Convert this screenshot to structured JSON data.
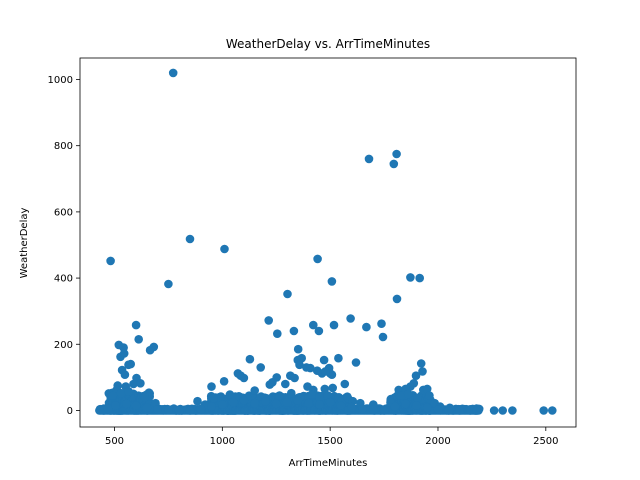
{
  "chart_data": {
    "type": "scatter",
    "title": "WeatherDelay vs. ArrTimeMinutes",
    "xlabel": "ArrTimeMinutes",
    "ylabel": "WeatherDelay",
    "xlim": [
      340,
      2640
    ],
    "ylim": [
      -50,
      1065
    ],
    "xticks": [
      500,
      1000,
      1500,
      2000,
      2500
    ],
    "yticks": [
      0,
      200,
      400,
      600,
      800,
      1000
    ],
    "grid": false,
    "legend": "none",
    "marker_color": "#1f77b4",
    "points": [
      [
        772,
        1020
      ],
      [
        1808,
        775
      ],
      [
        1680,
        760
      ],
      [
        1795,
        745
      ],
      [
        850,
        518
      ],
      [
        1010,
        488
      ],
      [
        482,
        452
      ],
      [
        1442,
        458
      ],
      [
        1872,
        402
      ],
      [
        1915,
        400
      ],
      [
        750,
        382
      ],
      [
        1508,
        390
      ],
      [
        1302,
        352
      ],
      [
        1810,
        337
      ],
      [
        1215,
        272
      ],
      [
        1595,
        278
      ],
      [
        1738,
        262
      ],
      [
        1668,
        252
      ],
      [
        1422,
        258
      ],
      [
        1518,
        258
      ],
      [
        1448,
        240
      ],
      [
        1332,
        240
      ],
      [
        1745,
        222
      ],
      [
        1255,
        232
      ],
      [
        600,
        258
      ],
      [
        612,
        215
      ],
      [
        520,
        198
      ],
      [
        542,
        190
      ],
      [
        682,
        192
      ],
      [
        665,
        182
      ],
      [
        528,
        162
      ],
      [
        545,
        172
      ],
      [
        1352,
        185
      ],
      [
        1472,
        152
      ],
      [
        1538,
        158
      ],
      [
        1620,
        145
      ],
      [
        1350,
        152
      ],
      [
        1368,
        158
      ],
      [
        1128,
        155
      ],
      [
        1922,
        142
      ],
      [
        1390,
        130
      ],
      [
        1178,
        130
      ],
      [
        1495,
        128
      ],
      [
        1462,
        112
      ],
      [
        1500,
        112
      ],
      [
        1508,
        108
      ],
      [
        1928,
        118
      ],
      [
        1898,
        105
      ],
      [
        1358,
        138
      ],
      [
        1252,
        100
      ],
      [
        1072,
        112
      ],
      [
        1085,
        105
      ],
      [
        1100,
        98
      ],
      [
        535,
        122
      ],
      [
        548,
        108
      ],
      [
        575,
        140
      ],
      [
        565,
        138
      ],
      [
        602,
        98
      ],
      [
        1315,
        105
      ],
      [
        1335,
        98
      ],
      [
        1408,
        128
      ],
      [
        1440,
        120
      ],
      [
        1478,
        118
      ],
      [
        1568,
        80
      ],
      [
        1872,
        72
      ],
      [
        1932,
        62
      ],
      [
        1818,
        62
      ],
      [
        515,
        75
      ],
      [
        510,
        62
      ],
      [
        552,
        72
      ],
      [
        588,
        80
      ],
      [
        620,
        82
      ],
      [
        950,
        72
      ],
      [
        1008,
        88
      ],
      [
        1150,
        60
      ],
      [
        1220,
        78
      ],
      [
        1232,
        85
      ],
      [
        1292,
        80
      ],
      [
        1395,
        72
      ],
      [
        1422,
        62
      ],
      [
        1475,
        65
      ],
      [
        1512,
        68
      ],
      [
        1850,
        65
      ],
      [
        1888,
        82
      ],
      [
        1950,
        65
      ],
      [
        492,
        45
      ],
      [
        530,
        52
      ],
      [
        565,
        58
      ],
      [
        640,
        40
      ],
      [
        690,
        22
      ],
      [
        885,
        28
      ],
      [
        920,
        18
      ],
      [
        960,
        38
      ],
      [
        1035,
        48
      ],
      [
        1060,
        42
      ],
      [
        1118,
        35
      ],
      [
        1180,
        42
      ],
      [
        1265,
        45
      ],
      [
        1320,
        52
      ],
      [
        1360,
        40
      ],
      [
        1415,
        48
      ],
      [
        1450,
        40
      ],
      [
        1490,
        45
      ],
      [
        1555,
        32
      ],
      [
        1582,
        38
      ],
      [
        1605,
        28
      ],
      [
        1640,
        22
      ],
      [
        1700,
        18
      ],
      [
        1780,
        25
      ],
      [
        1830,
        45
      ],
      [
        1862,
        50
      ],
      [
        1905,
        38
      ],
      [
        1960,
        45
      ],
      [
        1985,
        22
      ],
      [
        2010,
        12
      ],
      [
        2055,
        8
      ],
      [
        432,
        2
      ],
      [
        450,
        0
      ],
      [
        470,
        5
      ],
      [
        505,
        15
      ],
      [
        555,
        20
      ],
      [
        600,
        15
      ],
      [
        650,
        8
      ],
      [
        700,
        3
      ],
      [
        750,
        2
      ],
      [
        800,
        0
      ],
      [
        850,
        0
      ],
      [
        900,
        5
      ],
      [
        950,
        12
      ],
      [
        1000,
        18
      ],
      [
        1050,
        25
      ],
      [
        1100,
        30
      ],
      [
        1150,
        22
      ],
      [
        1200,
        28
      ],
      [
        1250,
        20
      ],
      [
        1300,
        25
      ],
      [
        1350,
        30
      ],
      [
        1400,
        22
      ],
      [
        1450,
        18
      ],
      [
        1500,
        25
      ],
      [
        1550,
        15
      ],
      [
        1600,
        10
      ],
      [
        1650,
        5
      ],
      [
        1700,
        2
      ],
      [
        1750,
        0
      ],
      [
        1800,
        12
      ],
      [
        1850,
        20
      ],
      [
        1900,
        15
      ],
      [
        1950,
        8
      ],
      [
        2000,
        3
      ],
      [
        2050,
        0
      ],
      [
        2100,
        0
      ],
      [
        2150,
        0
      ],
      [
        2180,
        0
      ],
      [
        2260,
        0
      ],
      [
        2300,
        0
      ],
      [
        2345,
        0
      ],
      [
        2490,
        0
      ],
      [
        2530,
        0
      ]
    ],
    "dense_band": {
      "x_from": 430,
      "x_to": 2190,
      "clusters": [
        {
          "x_from": 470,
          "x_to": 660,
          "y_max": 55
        },
        {
          "x_from": 940,
          "x_to": 1580,
          "y_max": 45
        },
        {
          "x_from": 1780,
          "x_to": 1960,
          "y_max": 48
        }
      ]
    }
  }
}
